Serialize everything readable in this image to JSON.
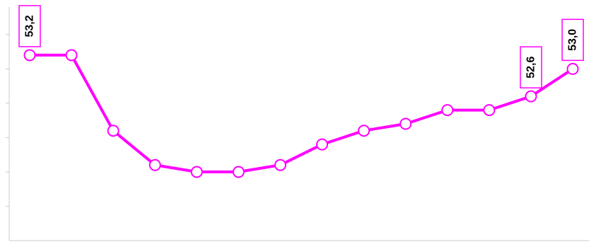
{
  "chart_data": {
    "type": "line",
    "title": "",
    "xlabel": "",
    "ylabel": "",
    "x": [
      1,
      2,
      3,
      4,
      5,
      6,
      7,
      8,
      9,
      10,
      11,
      12,
      13,
      14
    ],
    "series": [
      {
        "values": [
          53.2,
          53.2,
          52.1,
          51.6,
          51.5,
          51.5,
          51.6,
          51.9,
          52.1,
          52.2,
          52.4,
          52.4,
          52.6,
          53.0
        ]
      }
    ],
    "data_labels": [
      {
        "index": 0,
        "text": "53,2"
      },
      {
        "index": 12,
        "text": "52,6"
      },
      {
        "index": 13,
        "text": "53,0"
      }
    ],
    "ylim": [
      50.5,
      53.9
    ],
    "grid": false,
    "legend": "none",
    "colors": {
      "line": "#ff00ff",
      "marker_fill": "#ffffff",
      "axis": "#c8c8c8",
      "label_border": "#ff00ff"
    }
  }
}
